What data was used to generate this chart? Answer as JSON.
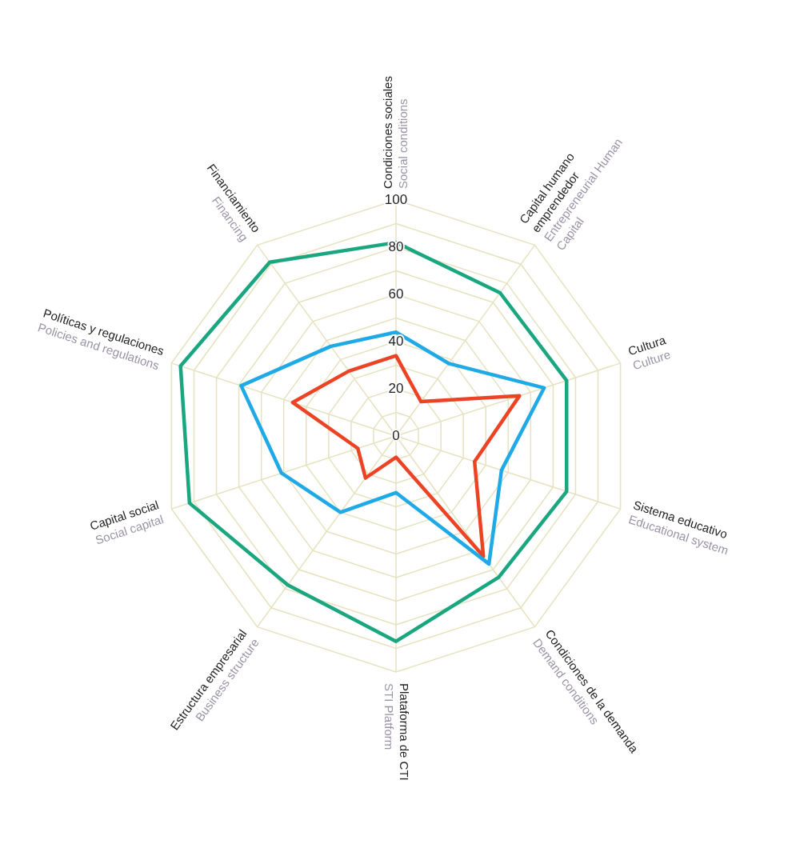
{
  "chart_data": {
    "type": "radar",
    "categories": [
      "Condiciones sociales\nSocial conditions",
      "Capital humano emprendedor\nEntrepreneurial Human Capital",
      "Cultura\nCulture",
      "Sistema educativo\nEducational system",
      "Condiciones de la demanda\nDemand conditions",
      "Plataforma de CTI\nSTI Platform",
      "Estructura empresarial\nBusiness structure",
      "Capital social\nSocial capital",
      "Políticas y regulaciones\nPolicies and regulations",
      "Financiamiento\nFinancing"
    ],
    "series": [
      {
        "color": "#1aa67e",
        "values": [
          82,
          75,
          76,
          76,
          74,
          87,
          78,
          92,
          96,
          91
        ]
      },
      {
        "color": "#1fa9e6",
        "values": [
          44,
          38,
          66,
          47,
          67,
          24,
          40,
          51,
          69,
          47
        ]
      },
      {
        "color": "#ec4325",
        "values": [
          34,
          18,
          55,
          35,
          63,
          9,
          22,
          17,
          46,
          34
        ]
      }
    ],
    "ylim": [
      0,
      100
    ],
    "yticks": [
      0,
      20,
      40,
      60,
      80,
      100
    ],
    "grid": true,
    "legend": false,
    "marker": "none",
    "line_style": "solid"
  }
}
